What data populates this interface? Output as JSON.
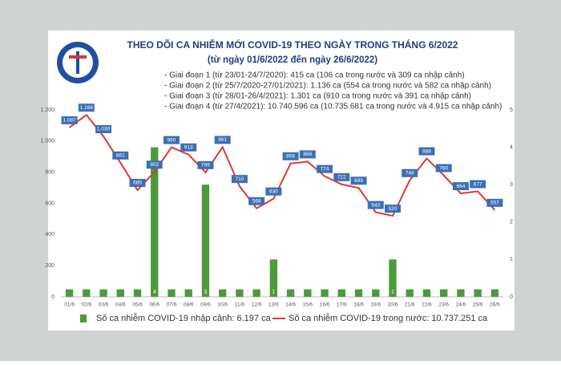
{
  "chart_data": {
    "type": "bar-line",
    "title": "THEO DÕI CA NHIỄM MỚI COVID-19 THEO NGÀY TRONG THÁNG 6/2022",
    "subtitle": "(từ ngày 01/6/2022 đến ngày 26/6/2022)",
    "notes": [
      "- Giai đoạn 1 (từ 23/01-24/7/2020): 415 ca (106 ca trong nước và 309 ca nhập cảnh)",
      "- Giai đoạn 2 (từ 25/7/2020-27/01/2021): 1.136 ca (554 ca trong nước và 582 ca nhập cảnh)",
      "- Giai đoạn 3 (từ 28/01-26/4/2021): 1.301 ca (910 ca trong nước và 391 ca nhập cảnh)",
      "- Giai đoạn 4 (từ 27/4/2021): 10.740.596 ca (10.735.681 ca trong nước và 4.915 ca nhập cảnh)"
    ],
    "categories": [
      "01/6",
      "02/6",
      "03/6",
      "04/6",
      "05/6",
      "06/6",
      "07/6",
      "08/6",
      "09/6",
      "10/6",
      "11/6",
      "12/6",
      "13/6",
      "14/6",
      "15/6",
      "16/6",
      "17/6",
      "18/6",
      "19/6",
      "20/6",
      "21/6",
      "22/6",
      "23/6",
      "24/6",
      "25/6",
      "26/6"
    ],
    "series": [
      {
        "name": "Số ca nhiễm COVID-19 nhập cảnh: 6.197 ca",
        "color": "#4c9a3c",
        "kind": "bar",
        "axis": "y2",
        "values": [
          0.2,
          0.2,
          0.2,
          0.2,
          0.2,
          4,
          0.2,
          0.2,
          3,
          0.2,
          0.2,
          0.2,
          1,
          0.2,
          0.2,
          0.2,
          0.2,
          0.2,
          0.2,
          1,
          0.2,
          0.2,
          0.2,
          0.2,
          0.2,
          0.2
        ]
      },
      {
        "name": "Số ca nhiễm COVID-19 trong nước: 10.737.251 ca",
        "color": "#e0382b",
        "kind": "line",
        "values": [
          1087,
          1168,
          1030,
          861,
          685,
          802,
          960,
          913,
          799,
          961,
          710,
          568,
          630,
          856,
          868,
          774,
          722,
          699,
          543,
          520,
          748,
          888,
          780,
          664,
          677,
          557
        ],
        "value_labels": [
          "1.087",
          "1.168",
          "1.030",
          "861",
          "685",
          "802",
          "960",
          "913",
          "799",
          "961",
          "710",
          "568",
          "630",
          "856",
          "868",
          "774",
          "722",
          "699",
          "543",
          "520",
          "748",
          "888",
          "780",
          "664",
          "677",
          "557"
        ]
      }
    ],
    "ylim": [
      0,
      1200
    ],
    "yticks": [
      0,
      200,
      400,
      600,
      800,
      {
        "value": 1000,
        "label": "1.000"
      },
      {
        "value": 1200,
        "label": "1.200"
      }
    ],
    "y2lim": [
      0,
      5
    ],
    "y2ticks": [
      0,
      1,
      2,
      3,
      4,
      5
    ],
    "grid": false
  }
}
